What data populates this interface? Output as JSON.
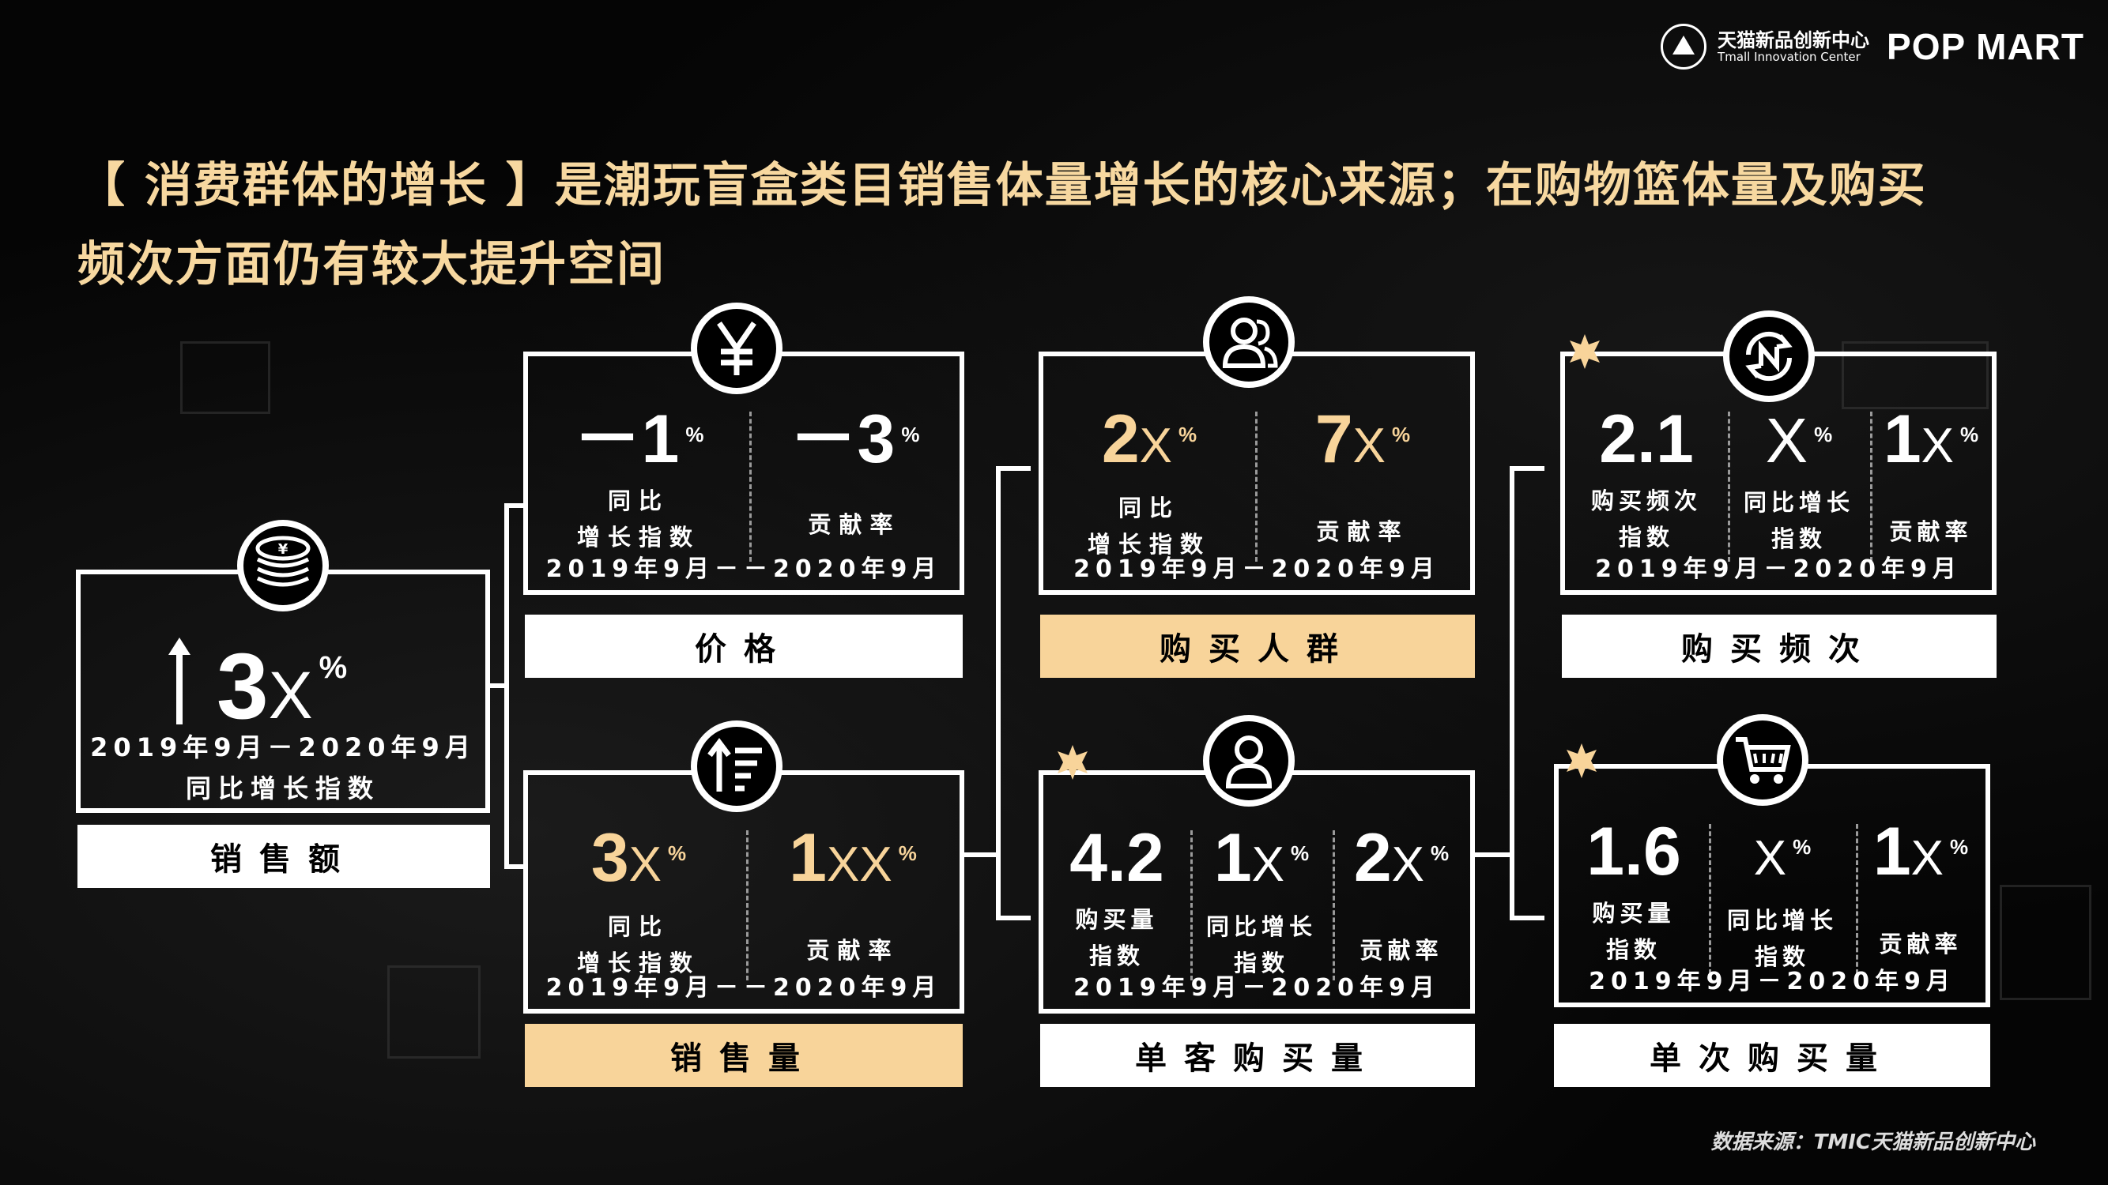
{
  "header": {
    "brand_cn": "天猫新品创新中心",
    "brand_en": "Tmall Innovation Center",
    "brand_pop": "POP MART"
  },
  "title_line1": "【 消费群体的增长 】是潮玩盲盒类目销售体量增长的核心来源；在购物篮体量及购买",
  "title_line2": "频次方面仍有较大提升空间",
  "colors": {
    "accent": "#f8d49a",
    "background": "#000000",
    "stroke": "#ffffff"
  },
  "sales_amount": {
    "icon": "coins-yen-icon",
    "arrow": "up-arrow-icon",
    "value": "3",
    "unit": "X",
    "pct": "%",
    "date": "2019年9月－2020年9月",
    "desc": "同比增长指数",
    "label": "销售额"
  },
  "price": {
    "icon": "yen-icon",
    "m1": {
      "value": "－1",
      "pct": "%",
      "desc1": "同比",
      "desc2": "增长指数"
    },
    "m2": {
      "value": "－3",
      "pct": "%",
      "desc": "贡献率"
    },
    "date": "2019年9月－－2020年9月",
    "label": "价格"
  },
  "volume": {
    "icon": "sort-up-icon",
    "m1": {
      "value": "3",
      "unit": "X",
      "pct": "%",
      "desc1": "同比",
      "desc2": "增长指数"
    },
    "m2": {
      "value": "1",
      "unit": "XX",
      "pct": "%",
      "desc": "贡献率"
    },
    "date": "2019年9月－－2020年9月",
    "label": "销售量"
  },
  "buyers": {
    "icon": "users-icon",
    "m1": {
      "value": "2",
      "unit": "X",
      "pct": "%",
      "desc1": "同比",
      "desc2": "增长指数"
    },
    "m2": {
      "value": "7",
      "unit": "X",
      "pct": "%",
      "desc": "贡献率"
    },
    "date": "2019年9月－2020年9月",
    "label": "购买人群"
  },
  "per_customer": {
    "icon": "user-icon",
    "m1": {
      "value": "4.2",
      "desc1": "购买量",
      "desc2": "指数"
    },
    "m2": {
      "value": "1",
      "unit": "X",
      "pct": "%",
      "desc1": "同比增长",
      "desc2": "指数"
    },
    "m3": {
      "value": "2",
      "unit": "X",
      "pct": "%",
      "desc": "贡献率"
    },
    "date": "2019年9月－2020年9月",
    "label": "单客购买量"
  },
  "frequency": {
    "icon": "refresh-n-icon",
    "m1": {
      "value": "2.1",
      "desc1": "购买频次",
      "desc2": "指数"
    },
    "m2": {
      "value": "",
      "unit": "X",
      "pct": "%",
      "desc1": "同比增长",
      "desc2": "指数"
    },
    "m3": {
      "value": "1",
      "unit": "X",
      "pct": "%",
      "desc": "贡献率"
    },
    "date": "2019年9月－2020年9月",
    "label": "购买频次"
  },
  "per_order": {
    "icon": "cart-icon",
    "m1": {
      "value": "1.6",
      "desc1": "购买量",
      "desc2": "指数"
    },
    "m2": {
      "value": "",
      "unit": "X",
      "pct": "%",
      "desc1": "同比增长",
      "desc2": "指数"
    },
    "m3": {
      "value": "1",
      "unit": "X",
      "pct": "%",
      "desc": "贡献率"
    },
    "date": "2019年9月－2020年9月",
    "label": "单次购买量"
  },
  "source": "数据来源：TMIC天猫新品创新中心"
}
